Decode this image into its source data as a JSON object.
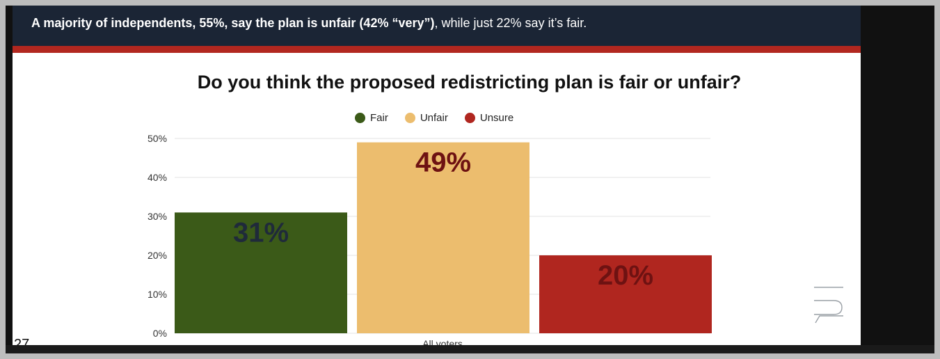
{
  "header": {
    "bold_text": "A majority of independents, 55%, say the plan is unfair (42% “very”)",
    "regular_text": ", while just 22% say it’s fair."
  },
  "colors": {
    "header_bg": "#1b2535",
    "accent_red": "#b2271f",
    "fair": "#3b5a18",
    "unfair": "#ecbd6e",
    "unsure": "#b0261f",
    "fair_label": "#1f2a3a",
    "unfair_label": "#6e1212",
    "unsure_label": "#6e1212"
  },
  "page_number": "27",
  "logo_icon": "brand-logo-icon",
  "chart_data": {
    "type": "bar",
    "title": "Do you think the proposed redistricting plan is fair or unfair?",
    "categories": [
      "All voters"
    ],
    "series": [
      {
        "name": "Fair",
        "values": [
          31
        ],
        "label": "31%"
      },
      {
        "name": "Unfair",
        "values": [
          49
        ],
        "label": "49%"
      },
      {
        "name": "Unsure",
        "values": [
          20
        ],
        "label": "20%"
      }
    ],
    "y_ticks": [
      "0%",
      "10%",
      "20%",
      "30%",
      "40%",
      "50%"
    ],
    "ylim": [
      0,
      50
    ],
    "xlabel": "",
    "ylabel": "",
    "grid": true,
    "legend_position": "top"
  }
}
